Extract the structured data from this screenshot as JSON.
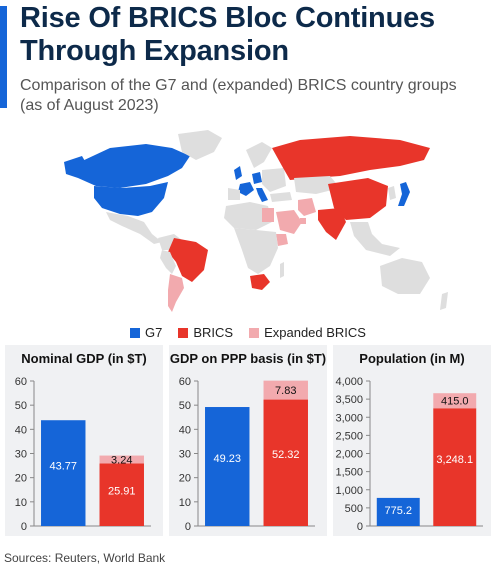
{
  "header": {
    "title": "Rise Of BRICS Bloc Continues Through Expansion",
    "subtitle": "Comparison of the G7 and (expanded) BRICS country groups (as of August 2023)"
  },
  "colors": {
    "accent": "#1565d8",
    "g7": "#1565d8",
    "brics": "#e8352a",
    "expanded": "#f2aaae",
    "map_other": "#dedede"
  },
  "legend": [
    {
      "label": "G7",
      "color": "#1565d8"
    },
    {
      "label": "BRICS",
      "color": "#e8352a"
    },
    {
      "label": "Expanded BRICS",
      "color": "#f2aaae"
    }
  ],
  "chart_data": [
    {
      "type": "bar",
      "title": "Nominal GDP (in $T)",
      "categories": [
        "G7",
        "BRICS"
      ],
      "series": [
        {
          "name": "G7",
          "values": [
            43.77,
            null
          ]
        },
        {
          "name": "BRICS",
          "values": [
            null,
            25.91
          ]
        },
        {
          "name": "Expanded BRICS",
          "values": [
            null,
            3.24
          ]
        }
      ],
      "stacked": true,
      "ylim": [
        0,
        60
      ],
      "yticks": [
        0,
        10,
        20,
        30,
        40,
        50,
        60
      ],
      "ytick_labels": [
        "0",
        "10",
        "20",
        "30",
        "40",
        "50",
        "60"
      ],
      "data_labels": [
        "43.77",
        "25.91",
        "3.24"
      ]
    },
    {
      "type": "bar",
      "title": "GDP on PPP basis (in $T)",
      "categories": [
        "G7",
        "BRICS"
      ],
      "series": [
        {
          "name": "G7",
          "values": [
            49.23,
            null
          ]
        },
        {
          "name": "BRICS",
          "values": [
            null,
            52.32
          ]
        },
        {
          "name": "Expanded BRICS",
          "values": [
            null,
            7.83
          ]
        }
      ],
      "stacked": true,
      "ylim": [
        0,
        60
      ],
      "yticks": [
        0,
        10,
        20,
        30,
        40,
        50,
        60
      ],
      "ytick_labels": [
        "0",
        "10",
        "20",
        "30",
        "40",
        "50",
        "60"
      ],
      "data_labels": [
        "49.23",
        "52.32",
        "7.83"
      ]
    },
    {
      "type": "bar",
      "title": "Population (in M)",
      "categories": [
        "G7",
        "BRICS"
      ],
      "series": [
        {
          "name": "G7",
          "values": [
            775.2,
            null
          ]
        },
        {
          "name": "BRICS",
          "values": [
            null,
            3248.1
          ]
        },
        {
          "name": "Expanded BRICS",
          "values": [
            null,
            415.0
          ]
        }
      ],
      "stacked": true,
      "ylim": [
        0,
        4000
      ],
      "yticks": [
        0,
        500,
        1000,
        1500,
        2000,
        2500,
        3000,
        3500,
        4000
      ],
      "ytick_labels": [
        "0",
        "500",
        "1,000",
        "1,500",
        "2,000",
        "2,500",
        "3,000",
        "3,500",
        "4,000"
      ],
      "data_labels": [
        "775.2",
        "3,248.1",
        "415.0"
      ]
    }
  ],
  "footer": {
    "sources": "Sources: Reuters, World Bank"
  }
}
